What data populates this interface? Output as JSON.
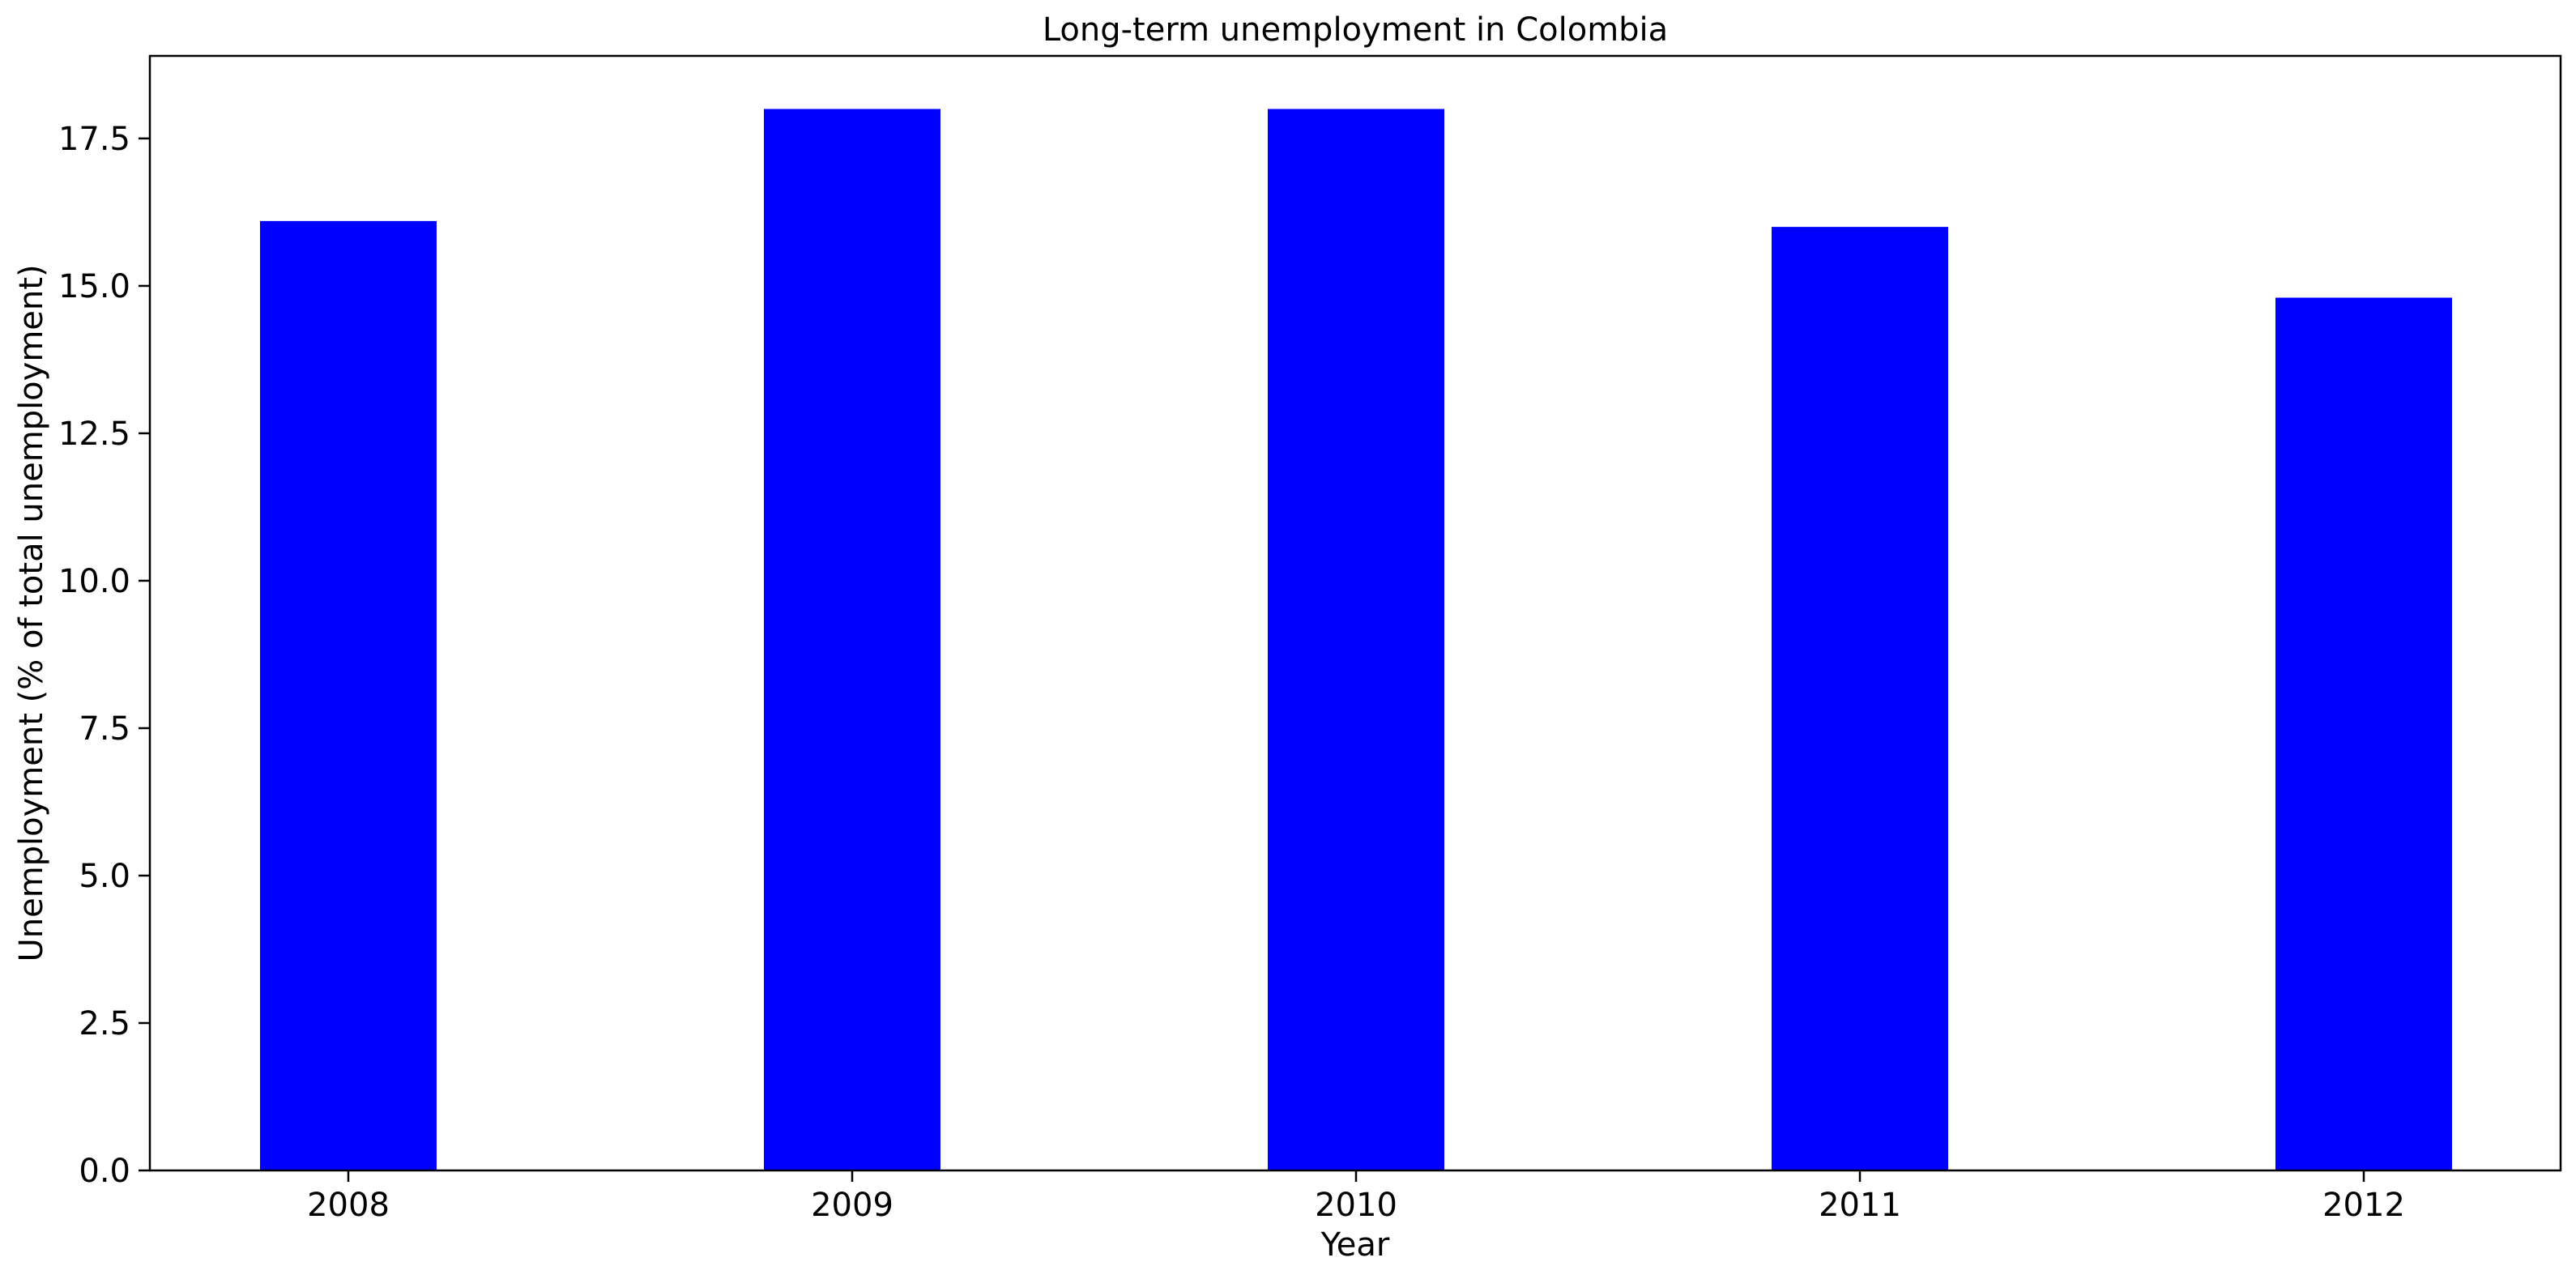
{
  "chart_data": {
    "type": "bar",
    "title": "Long-term unemployment in Colombia",
    "xlabel": "Year",
    "ylabel": "Unemployment (% of total unemployment)",
    "categories": [
      "2008",
      "2009",
      "2010",
      "2011",
      "2012"
    ],
    "values": [
      16.1,
      18.0,
      18.0,
      16.0,
      14.8
    ],
    "ylim": [
      0,
      18.9
    ],
    "yticks": [
      0.0,
      2.5,
      5.0,
      7.5,
      10.0,
      12.5,
      15.0,
      17.5
    ],
    "ytick_labels": [
      "0.0",
      "2.5",
      "5.0",
      "7.5",
      "10.0",
      "12.5",
      "15.0",
      "17.5"
    ],
    "bar_color": "#0000ff",
    "grid": false,
    "legend": "none"
  }
}
